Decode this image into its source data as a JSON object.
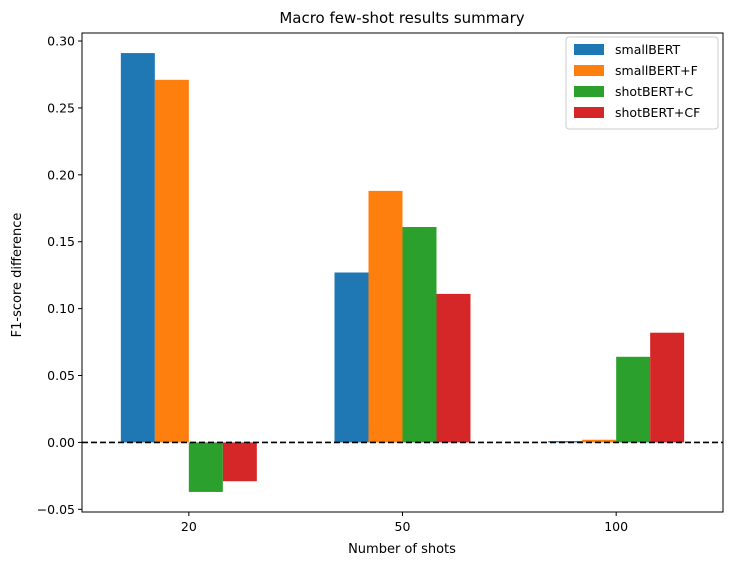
{
  "chart_data": {
    "type": "bar",
    "title": "Macro few-shot results summary",
    "xlabel": "Number of shots",
    "ylabel": "F1-score difference",
    "categories": [
      "20",
      "50",
      "100"
    ],
    "series": [
      {
        "name": "smallBERT",
        "color": "#1f77b4",
        "values": [
          0.291,
          0.127,
          0.001
        ]
      },
      {
        "name": "smallBERT+F",
        "color": "#ff7f0e",
        "values": [
          0.271,
          0.188,
          0.002
        ]
      },
      {
        "name": "shotBERT+C",
        "color": "#2ca02c",
        "values": [
          -0.037,
          0.161,
          0.064
        ]
      },
      {
        "name": "shotBERT+CF",
        "color": "#d62728",
        "values": [
          -0.029,
          0.111,
          0.082
        ]
      }
    ],
    "ylim": [
      -0.052,
      0.306
    ],
    "yticks": [
      -0.05,
      0.0,
      0.05,
      0.1,
      0.15,
      0.2,
      0.25,
      0.3
    ],
    "ytick_labels": [
      "−0.05",
      "0.00",
      "0.05",
      "0.10",
      "0.15",
      "0.20",
      "0.25",
      "0.30"
    ],
    "reference_line": {
      "y": 0,
      "style": "dashed",
      "color": "#000000"
    },
    "legend_position": "top-right",
    "grid": false
  }
}
